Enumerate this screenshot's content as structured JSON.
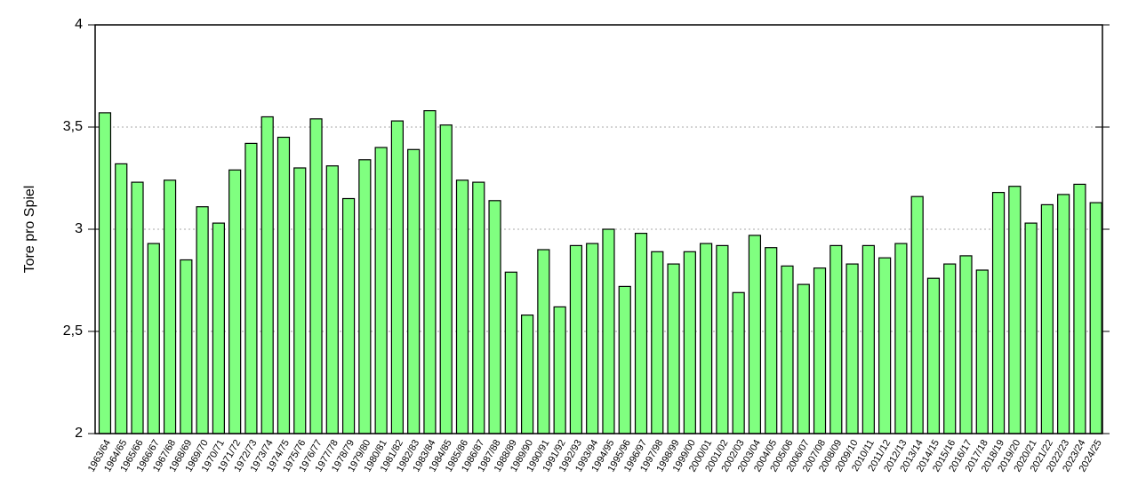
{
  "chart_data": {
    "type": "bar",
    "y_label": "Tore pro Spiel",
    "categories": [
      "1963/64",
      "1964/65",
      "1965/66",
      "1966/67",
      "1967/68",
      "1968/69",
      "1969/70",
      "1970/71",
      "1971/72",
      "1972/73",
      "1973/74",
      "1974/75",
      "1975/76",
      "1976/77",
      "1977/78",
      "1978/79",
      "1979/80",
      "1980/81",
      "1981/82",
      "1982/83",
      "1983/84",
      "1984/85",
      "1985/86",
      "1986/87",
      "1987/88",
      "1988/89",
      "1989/90",
      "1990/91",
      "1991/92",
      "1992/93",
      "1993/94",
      "1994/95",
      "1995/96",
      "1996/97",
      "1997/98",
      "1998/99",
      "1999/00",
      "2000/01",
      "2001/02",
      "2002/03",
      "2003/04",
      "2004/05",
      "2005/06",
      "2006/07",
      "2007/08",
      "2008/09",
      "2009/10",
      "2010/11",
      "2011/12",
      "2012/13",
      "2013/14",
      "2014/15",
      "2015/16",
      "2016/17",
      "2017/18",
      "2018/19",
      "2019/20",
      "2020/21",
      "2021/22",
      "2022/23",
      "2023/24",
      "2024/25"
    ],
    "values": [
      3.57,
      3.32,
      3.23,
      2.93,
      3.24,
      2.85,
      3.11,
      3.03,
      3.29,
      3.42,
      3.55,
      3.45,
      3.3,
      3.54,
      3.31,
      3.15,
      3.34,
      3.4,
      3.53,
      3.39,
      3.58,
      3.51,
      3.24,
      3.23,
      3.14,
      2.79,
      2.58,
      2.9,
      2.62,
      2.92,
      2.93,
      3.0,
      2.72,
      2.98,
      2.89,
      2.83,
      2.89,
      2.93,
      2.92,
      2.69,
      2.97,
      2.91,
      2.82,
      2.73,
      2.81,
      2.92,
      2.83,
      2.92,
      2.86,
      2.93,
      3.16,
      2.76,
      2.83,
      2.87,
      2.8,
      3.18,
      3.21,
      3.03,
      3.12,
      3.17,
      3.22,
      3.13
    ],
    "color": "#80ff80",
    "ylim": [
      2,
      4
    ],
    "yticks": [
      2,
      {
        "value": 2.5,
        "label": "2,5"
      },
      3,
      {
        "value": 3.5,
        "label": "3,5"
      },
      4
    ],
    "grid": true
  }
}
